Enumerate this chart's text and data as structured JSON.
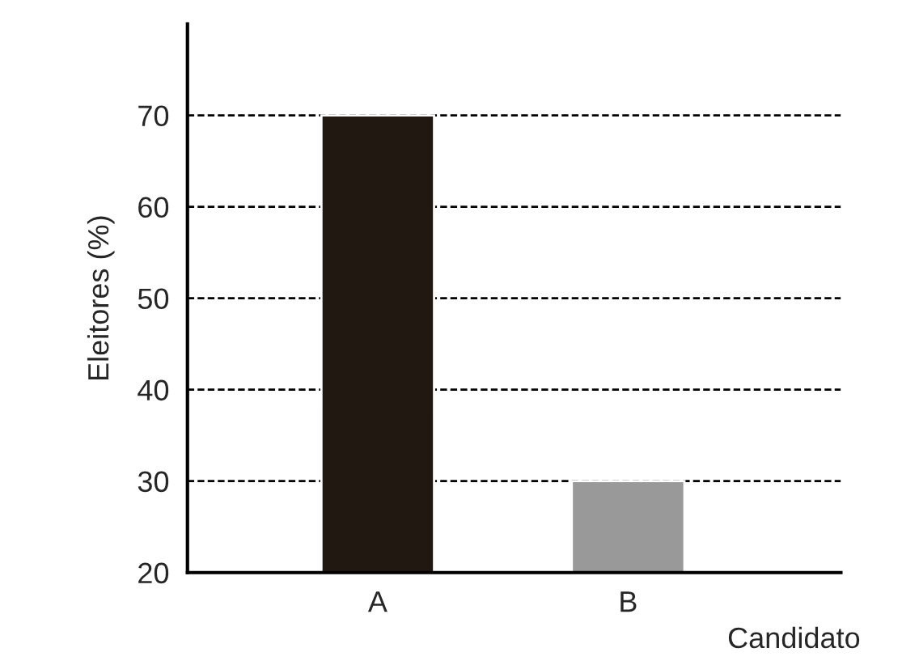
{
  "chart_data": {
    "type": "bar",
    "xlabel": "Candidato",
    "ylabel": "Eleitores (%)",
    "categories": [
      "A",
      "B"
    ],
    "values": [
      70,
      30
    ],
    "colors": [
      "#221812",
      "#999999"
    ],
    "ylim": [
      20,
      80
    ],
    "yticks": [
      20,
      30,
      40,
      50,
      60,
      70
    ],
    "grid": "y"
  }
}
